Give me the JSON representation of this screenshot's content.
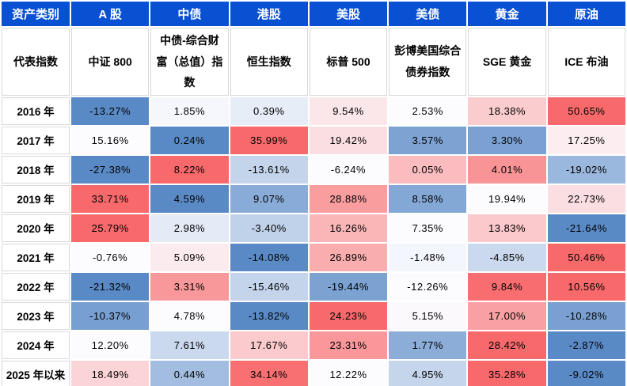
{
  "chart_data": {
    "type": "heatmap",
    "corner_label": "资产类别",
    "index_row_label": "代表指数",
    "columns": [
      "A 股",
      "中债",
      "港股",
      "美股",
      "美债",
      "黄金",
      "原油"
    ],
    "column_indices": [
      "中证 800",
      "中债-综合财富（总值）指数",
      "恒生指数",
      "标普 500",
      "彭博美国综合债券指数",
      "SGE 黄金",
      "ICE 布油"
    ],
    "row_labels": [
      "2016 年",
      "2017 年",
      "2018 年",
      "2019 年",
      "2020 年",
      "2021 年",
      "2022 年",
      "2023 年",
      "2024 年",
      "2025 年以来"
    ],
    "values_pct": [
      [
        -13.27,
        1.85,
        0.39,
        9.54,
        2.53,
        18.38,
        50.65
      ],
      [
        15.16,
        0.24,
        35.99,
        19.42,
        3.57,
        3.3,
        17.25
      ],
      [
        -27.38,
        8.22,
        -13.61,
        -6.24,
        0.05,
        4.01,
        -19.02
      ],
      [
        33.71,
        4.59,
        9.07,
        28.88,
        8.58,
        19.94,
        22.73
      ],
      [
        25.79,
        2.98,
        -3.4,
        16.26,
        7.35,
        13.83,
        -21.64
      ],
      [
        -0.76,
        5.09,
        -14.08,
        26.89,
        -1.48,
        -4.85,
        50.46
      ],
      [
        -21.32,
        3.31,
        -15.46,
        -19.44,
        -12.26,
        9.84,
        10.56
      ],
      [
        -10.37,
        4.78,
        -13.82,
        24.23,
        5.15,
        17.0,
        -10.28
      ],
      [
        12.2,
        7.61,
        17.67,
        23.31,
        1.77,
        28.42,
        -2.87
      ],
      [
        18.49,
        0.44,
        34.14,
        12.22,
        4.95,
        35.28,
        -9.02
      ]
    ],
    "value_format": "0.00%",
    "color_scale": {
      "type": "3-color",
      "min_color": "#5A8AC6",
      "mid_color": "#FCFCFF",
      "max_color": "#F8696B",
      "midpoint": "row_median"
    },
    "legend_position": "none",
    "grid": "white 2px gaps between cells; light gray borders on label cells"
  },
  "colors": {
    "header_bg": "#0A50D2",
    "header_text": "#FFFFFF",
    "grid_border": "#D9D9D9",
    "cell_text": "#000000",
    "background": "#FFFFFF"
  }
}
